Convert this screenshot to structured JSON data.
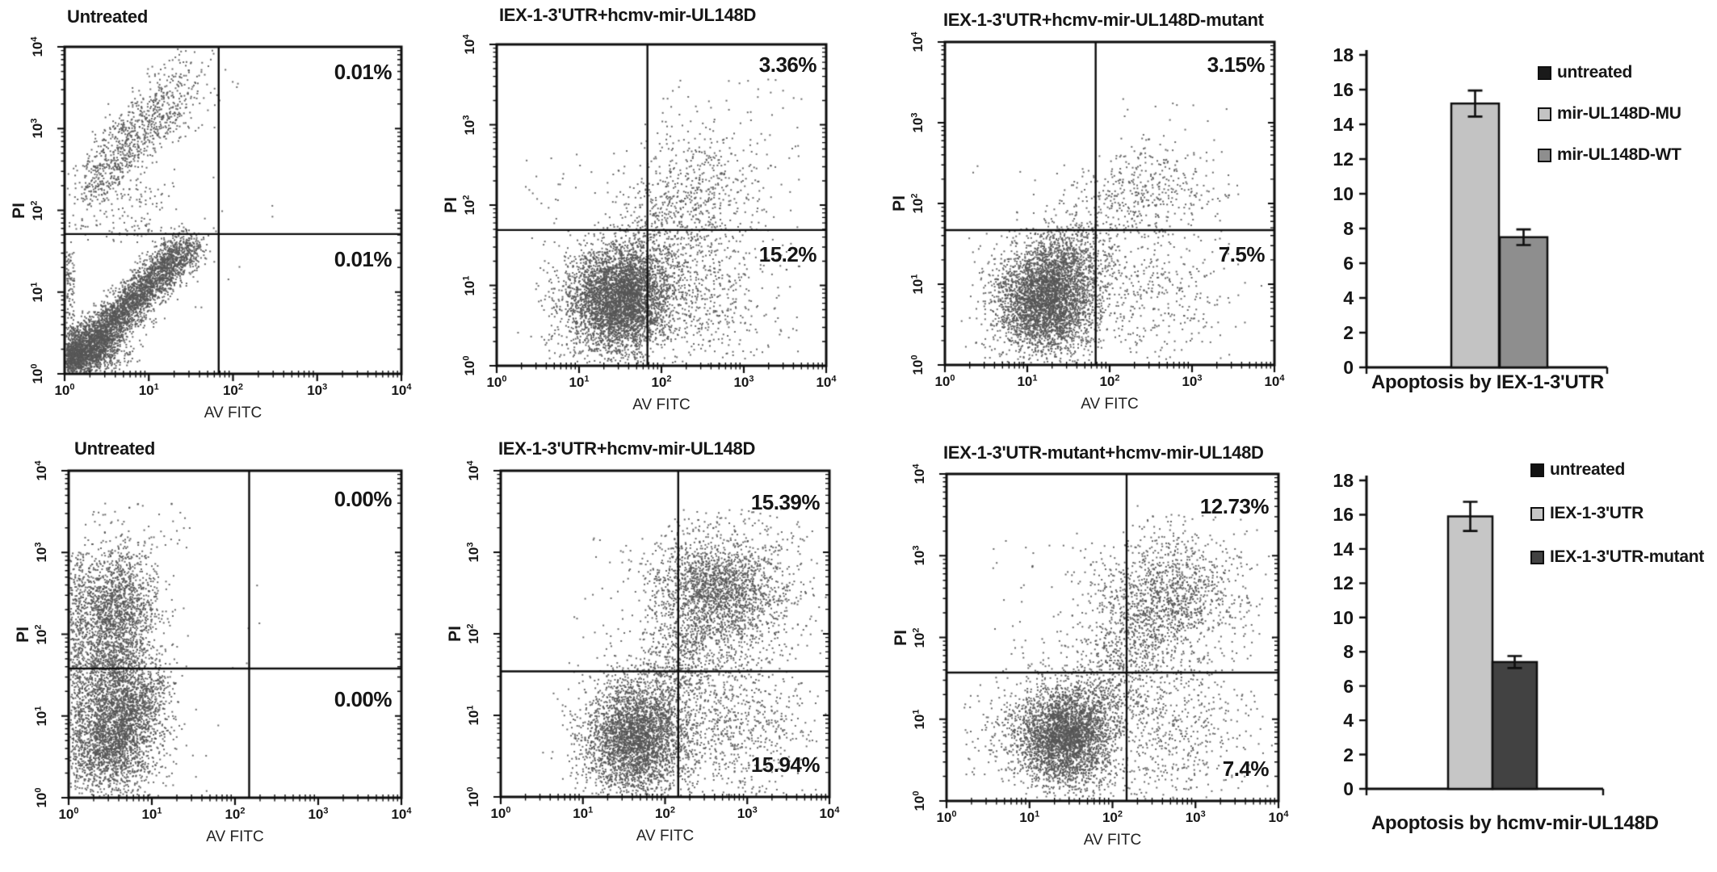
{
  "style": {
    "dot_color": "#565656",
    "line_color": "#0d0d0d",
    "background": "#ffffff"
  },
  "chart_data": [
    {
      "type": "scatter",
      "panel": "flow-top-untreated",
      "title": "Untreated",
      "xlabel": "AV FITC",
      "ylabel": "PI",
      "xlim_log": [
        0,
        4
      ],
      "ylim_log": [
        0,
        4
      ],
      "tick_base": "10",
      "tick_exponents": [
        "0",
        "1",
        "2",
        "3",
        "4"
      ],
      "quadrant": {
        "x_log": 1.83,
        "y_log": 1.71
      },
      "annotations": [
        {
          "text": "0.01%",
          "position": "upper-right"
        },
        {
          "text": "0.01%",
          "position": "lower-right-below-line"
        }
      ],
      "clusters": [
        {
          "kind": "band",
          "n": 4000,
          "x0": 0.06,
          "y0": 0.1,
          "x1": 1.48,
          "y1": 1.58,
          "spread": 0.12,
          "bias": 1.25
        },
        {
          "kind": "gauss",
          "n": 700,
          "cx": 0.32,
          "cy": 0.28,
          "sx": 0.22,
          "sy": 0.18
        },
        {
          "kind": "band",
          "n": 780,
          "x0": 0.32,
          "y0": 2.28,
          "x1": 1.22,
          "y1": 3.32,
          "spread": 0.17,
          "bias": 1.0
        },
        {
          "kind": "gauss",
          "n": 130,
          "cx": 1.4,
          "cy": 3.55,
          "sx": 0.22,
          "sy": 0.22
        },
        {
          "kind": "uniform",
          "n": 150,
          "x0": 0.05,
          "x1": 1.35,
          "y0": 1.6,
          "y1": 2.35
        },
        {
          "kind": "uniform",
          "n": 120,
          "x0": 0.02,
          "x1": 0.12,
          "y0": 0.05,
          "y1": 1.5
        },
        {
          "kind": "uniform",
          "n": 12,
          "x0": 1.5,
          "x1": 2.2,
          "y0": 0.3,
          "y1": 3.4
        },
        {
          "kind": "uniform",
          "n": 2,
          "x0": 2.3,
          "x1": 2.6,
          "y0": 1.4,
          "y1": 2.5
        }
      ]
    },
    {
      "type": "scatter",
      "panel": "flow-top-wt",
      "title": "IEX-1-3'UTR+hcmv-mir-UL148D",
      "xlabel": "AV FITC",
      "ylabel": "PI",
      "xlim_log": [
        0,
        4
      ],
      "ylim_log": [
        0,
        4
      ],
      "tick_base": "10",
      "tick_exponents": [
        "0",
        "1",
        "2",
        "3",
        "4"
      ],
      "quadrant": {
        "x_log": 1.83,
        "y_log": 1.69
      },
      "annotations": [
        {
          "text": "3.36%",
          "position": "upper-right"
        },
        {
          "text": "15.2%",
          "position": "lower-right-below-line"
        }
      ],
      "clusters": [
        {
          "kind": "gauss",
          "n": 3400,
          "cx": 1.42,
          "cy": 0.8,
          "sx": 0.3,
          "sy": 0.32
        },
        {
          "kind": "gauss",
          "n": 900,
          "cx": 1.72,
          "cy": 0.95,
          "sx": 0.22,
          "sy": 0.35
        },
        {
          "kind": "gauss",
          "n": 650,
          "cx": 2.35,
          "cy": 0.9,
          "sx": 0.45,
          "sy": 0.45
        },
        {
          "kind": "gauss",
          "n": 420,
          "cx": 2.45,
          "cy": 2.15,
          "sx": 0.42,
          "sy": 0.38
        },
        {
          "kind": "band",
          "n": 260,
          "x0": 1.75,
          "y0": 1.45,
          "x1": 2.25,
          "y1": 2.0,
          "spread": 0.28,
          "bias": 1.0
        },
        {
          "kind": "uniform",
          "n": 190,
          "x0": 0.35,
          "x1": 3.7,
          "y0": 0.05,
          "y1": 2.6
        },
        {
          "kind": "uniform",
          "n": 60,
          "x0": 2.0,
          "x1": 3.7,
          "y0": 2.6,
          "y1": 3.6
        }
      ]
    },
    {
      "type": "scatter",
      "panel": "flow-top-mutant",
      "title": "IEX-1-3'UTR+hcmv-mir-UL148D-mutant",
      "xlabel": "AV FITC",
      "ylabel": "PI",
      "xlim_log": [
        0,
        4
      ],
      "ylim_log": [
        0,
        4
      ],
      "tick_base": "10",
      "tick_exponents": [
        "0",
        "1",
        "2",
        "3",
        "4"
      ],
      "quadrant": {
        "x_log": 1.83,
        "y_log": 1.67
      },
      "annotations": [
        {
          "text": "3.15%",
          "position": "upper-right"
        },
        {
          "text": "7.5%",
          "position": "lower-right-below-line"
        }
      ],
      "clusters": [
        {
          "kind": "gauss",
          "n": 3400,
          "cx": 1.22,
          "cy": 0.78,
          "sx": 0.3,
          "sy": 0.32
        },
        {
          "kind": "gauss",
          "n": 700,
          "cx": 1.45,
          "cy": 1.25,
          "sx": 0.26,
          "sy": 0.28
        },
        {
          "kind": "gauss",
          "n": 360,
          "cx": 2.45,
          "cy": 0.9,
          "sx": 0.5,
          "sy": 0.45
        },
        {
          "kind": "gauss",
          "n": 300,
          "cx": 2.5,
          "cy": 2.2,
          "sx": 0.36,
          "sy": 0.3
        },
        {
          "kind": "band",
          "n": 150,
          "x0": 1.6,
          "y0": 1.5,
          "x1": 2.1,
          "y1": 2.05,
          "spread": 0.25,
          "bias": 1.0
        },
        {
          "kind": "uniform",
          "n": 150,
          "x0": 0.2,
          "x1": 3.6,
          "y0": 0.05,
          "y1": 2.5
        },
        {
          "kind": "uniform",
          "n": 25,
          "x0": 2.0,
          "x1": 3.5,
          "y0": 2.5,
          "y1": 3.3
        }
      ]
    },
    {
      "type": "scatter",
      "panel": "flow-bottom-untreated",
      "title": "Untreated",
      "xlabel": "AV FITC",
      "ylabel": "PI",
      "xlim_log": [
        0,
        4
      ],
      "ylim_log": [
        0,
        4
      ],
      "tick_base": "10",
      "tick_exponents": [
        "0",
        "1",
        "2",
        "3",
        "4"
      ],
      "quadrant": {
        "x_log": 2.17,
        "y_log": 1.58
      },
      "annotations": [
        {
          "text": "0.00%",
          "position": "upper-right"
        },
        {
          "text": "0.00%",
          "position": "lower-right-below-line"
        }
      ],
      "clusters": [
        {
          "kind": "gauss",
          "n": 2400,
          "cx": 0.55,
          "cy": 0.85,
          "sx": 0.3,
          "sy": 0.42
        },
        {
          "kind": "band",
          "n": 600,
          "x0": 0.25,
          "y0": 0.3,
          "x1": 1.1,
          "y1": 1.45,
          "spread": 0.13,
          "bias": 1.0
        },
        {
          "kind": "gauss",
          "n": 1700,
          "cx": 0.55,
          "cy": 2.3,
          "sx": 0.27,
          "sy": 0.38
        },
        {
          "kind": "gauss",
          "n": 650,
          "cx": 0.5,
          "cy": 1.55,
          "sx": 0.24,
          "sy": 0.3
        },
        {
          "kind": "uniform",
          "n": 260,
          "x0": 0.02,
          "x1": 0.18,
          "y0": 0.1,
          "y1": 3.0
        },
        {
          "kind": "uniform",
          "n": 45,
          "x0": 0.2,
          "x1": 1.5,
          "y0": 2.95,
          "y1": 3.6
        },
        {
          "kind": "uniform",
          "n": 8,
          "x0": 1.4,
          "x1": 2.6,
          "y0": 0.4,
          "y1": 2.6
        }
      ]
    },
    {
      "type": "scatter",
      "panel": "flow-bottom-wt",
      "title": "IEX-1-3'UTR+hcmv-mir-UL148D",
      "xlabel": "AV FITC",
      "ylabel": "PI",
      "xlim_log": [
        0,
        4
      ],
      "ylim_log": [
        0,
        4
      ],
      "tick_base": "10",
      "tick_exponents": [
        "0",
        "1",
        "2",
        "3",
        "4"
      ],
      "quadrant": {
        "x_log": 2.16,
        "y_log": 1.54
      },
      "annotations": [
        {
          "text": "15.39%",
          "position": "upper-right"
        },
        {
          "text": "15.94%",
          "position": "lower-right-bottom"
        }
      ],
      "clusters": [
        {
          "kind": "gauss",
          "n": 3100,
          "cx": 1.62,
          "cy": 0.72,
          "sx": 0.31,
          "sy": 0.34
        },
        {
          "kind": "gauss",
          "n": 1400,
          "cx": 2.6,
          "cy": 2.62,
          "sx": 0.4,
          "sy": 0.27
        },
        {
          "kind": "gauss",
          "n": 520,
          "cx": 2.9,
          "cy": 2.3,
          "sx": 0.35,
          "sy": 0.33
        },
        {
          "kind": "band",
          "n": 650,
          "x0": 1.9,
          "y0": 1.25,
          "x1": 2.5,
          "y1": 2.3,
          "spread": 0.27,
          "bias": 1.0
        },
        {
          "kind": "gauss",
          "n": 850,
          "cx": 2.7,
          "cy": 0.9,
          "sx": 0.5,
          "sy": 0.5
        },
        {
          "kind": "uniform",
          "n": 260,
          "x0": 0.8,
          "x1": 3.8,
          "y0": 0.05,
          "y1": 3.3
        },
        {
          "kind": "uniform",
          "n": 90,
          "x0": 2.1,
          "x1": 3.7,
          "y0": 3.0,
          "y1": 3.55
        }
      ]
    },
    {
      "type": "scatter",
      "panel": "flow-bottom-mutant",
      "title": "IEX-1-3'UTR-mutant+hcmv-mir-UL148D",
      "xlabel": "AV FITC",
      "ylabel": "PI",
      "xlim_log": [
        0,
        4
      ],
      "ylim_log": [
        0,
        4
      ],
      "tick_base": "10",
      "tick_exponents": [
        "0",
        "1",
        "2",
        "3",
        "4"
      ],
      "quadrant": {
        "x_log": 2.17,
        "y_log": 1.57
      },
      "annotations": [
        {
          "text": "12.73%",
          "position": "upper-right"
        },
        {
          "text": "7.4%",
          "position": "lower-right-bottom"
        }
      ],
      "clusters": [
        {
          "kind": "gauss",
          "n": 3300,
          "cx": 1.42,
          "cy": 0.78,
          "sx": 0.3,
          "sy": 0.3
        },
        {
          "kind": "gauss",
          "n": 1100,
          "cx": 2.7,
          "cy": 2.5,
          "sx": 0.45,
          "sy": 0.33
        },
        {
          "kind": "band",
          "n": 780,
          "x0": 1.65,
          "y0": 1.05,
          "x1": 2.6,
          "y1": 2.35,
          "spread": 0.3,
          "bias": 1.0
        },
        {
          "kind": "gauss",
          "n": 560,
          "cx": 2.65,
          "cy": 0.85,
          "sx": 0.5,
          "sy": 0.5
        },
        {
          "kind": "uniform",
          "n": 220,
          "x0": 0.5,
          "x1": 3.7,
          "y0": 0.05,
          "y1": 3.2
        },
        {
          "kind": "uniform",
          "n": 60,
          "x0": 0.2,
          "x1": 0.95,
          "y0": 0.3,
          "y1": 1.4
        },
        {
          "kind": "uniform",
          "n": 40,
          "x0": 2.2,
          "x1": 3.6,
          "y0": 3.0,
          "y1": 3.5
        }
      ]
    },
    {
      "type": "bar",
      "panel": "bar-top",
      "title": "Apoptosis by IEX-1-3'UTR",
      "ylim": [
        0,
        18
      ],
      "ytick_step": 2,
      "ytick_labels": [
        "0",
        "2",
        "4",
        "6",
        "8",
        "10",
        "12",
        "14",
        "16",
        "18"
      ],
      "legend_position": "right-top",
      "grid": false,
      "series": [
        {
          "name": "untreated",
          "value": 0,
          "error": 0,
          "color": "#1a1a1a"
        },
        {
          "name": "mir-UL148D-MU",
          "value": 15.2,
          "error": 0.75,
          "color": "#c3c3c3"
        },
        {
          "name": "mir-UL148D-WT",
          "value": 7.5,
          "error": 0.45,
          "color": "#8e8e8e"
        }
      ]
    },
    {
      "type": "bar",
      "panel": "bar-bottom",
      "title": "Apoptosis by hcmv-mir-UL148D",
      "ylim": [
        0,
        18
      ],
      "ytick_step": 2,
      "ytick_labels": [
        "0",
        "2",
        "4",
        "6",
        "8",
        "10",
        "12",
        "14",
        "16",
        "18"
      ],
      "legend_position": "right-top",
      "grid": false,
      "series": [
        {
          "name": "untreated",
          "value": 0,
          "error": 0,
          "color": "#121212"
        },
        {
          "name": "IEX-1-3'UTR",
          "value": 15.9,
          "error": 0.85,
          "color": "#c6c6c6"
        },
        {
          "name": "IEX-1-3'UTR-mutant",
          "value": 7.4,
          "error": 0.35,
          "color": "#424242"
        }
      ]
    }
  ]
}
